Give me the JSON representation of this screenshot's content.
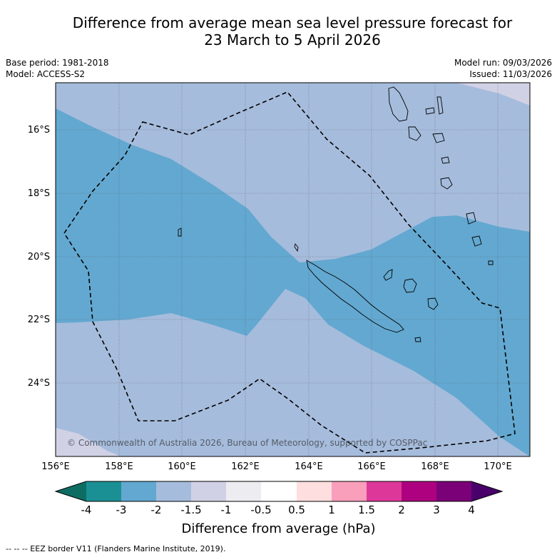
{
  "header": {
    "title_line1": "Difference from average mean sea level pressure forecast for",
    "title_line2": "23 March to 5 April 2026",
    "base_period": "Base period: 1981-2018",
    "model": "Model: ACCESS-S2",
    "model_run": "Model run: 09/03/2026",
    "issued": "Issued: 11/03/2026"
  },
  "map": {
    "latitude_labels": [
      "16°S",
      "18°S",
      "20°S",
      "22°S",
      "24°S"
    ],
    "longitude_labels": [
      "156°E",
      "158°E",
      "160°E",
      "162°E",
      "164°E",
      "166°E",
      "168°E",
      "170°E"
    ],
    "copyright": "© Commonwealth of Australia 2026, Bureau of Meteorology, supported by COSPPac"
  },
  "colorbar": {
    "tick_labels": [
      "-4",
      "-3",
      "-2",
      "-1.5",
      "-1",
      "-0.5",
      "0.5",
      "1",
      "1.5",
      "2",
      "3",
      "4"
    ],
    "colors": [
      "#1a9095",
      "#63a8d0",
      "#a6bcdc",
      "#d1d1e6",
      "#ececf1",
      "#ffffff",
      "#fedede",
      "#f99ebb",
      "#de379a",
      "#ae017f",
      "#7a0178"
    ],
    "under_color": "#0e6d63",
    "over_color": "#49006a",
    "title": "Difference from average (hPa)"
  },
  "map_colors": {
    "band_minus2": "#a6bcdc",
    "band_minus3": "#63a8d0",
    "band_minus1_5": "#d1d1e6"
  },
  "legend": {
    "footnote": "--  --  -- EEZ border V11 (Flanders Marine Institute, 2019)."
  }
}
